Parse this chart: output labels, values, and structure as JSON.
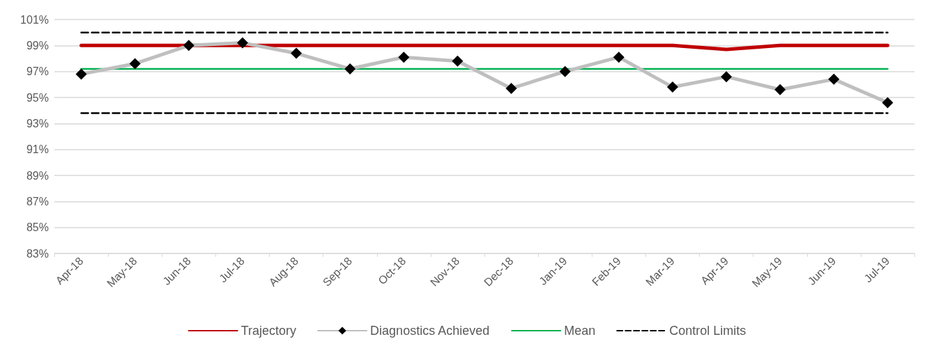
{
  "chart_data": {
    "type": "line",
    "categories": [
      "Apr-18",
      "May-18",
      "Jun-18",
      "Jul-18",
      "Aug-18",
      "Sep-18",
      "Oct-18",
      "Nov-18",
      "Dec-18",
      "Jan-19",
      "Feb-19",
      "Mar-19",
      "Apr-19",
      "May-19",
      "Jun-19",
      "Jul-19"
    ],
    "series": [
      {
        "name": "Trajectory",
        "color": "#c00000",
        "values": [
          99,
          99,
          99,
          99,
          99,
          99,
          99,
          99,
          99,
          99,
          99,
          99,
          98.7,
          99,
          99,
          99
        ],
        "marker": "none",
        "line_style": "solid"
      },
      {
        "name": "Diagnostics Achieved",
        "color": "#bfbfbf",
        "values": [
          96.8,
          97.6,
          99.0,
          99.2,
          98.4,
          97.2,
          98.1,
          97.8,
          95.7,
          97.0,
          98.1,
          95.8,
          96.6,
          95.6,
          96.4,
          94.6
        ],
        "marker": "diamond",
        "line_style": "solid"
      },
      {
        "name": "Mean",
        "color": "#00b050",
        "values": [
          97.2,
          97.2,
          97.2,
          97.2,
          97.2,
          97.2,
          97.2,
          97.2,
          97.2,
          97.2,
          97.2,
          97.2,
          97.2,
          97.2,
          97.2,
          97.2
        ],
        "marker": "none",
        "line_style": "solid"
      },
      {
        "name": "Control Limits",
        "color": "#000000",
        "values": [
          100,
          100,
          100,
          100,
          100,
          100,
          100,
          100,
          100,
          100,
          100,
          100,
          100,
          100,
          100,
          100
        ],
        "marker": "none",
        "line_style": "dashed"
      },
      {
        "color": "#000000",
        "values": [
          93.8,
          93.8,
          93.8,
          93.8,
          93.8,
          93.8,
          93.8,
          93.8,
          93.8,
          93.8,
          93.8,
          93.8,
          93.8,
          93.8,
          93.8,
          93.8
        ],
        "marker": "none",
        "line_style": "dashed"
      }
    ],
    "ylim": [
      83,
      101
    ],
    "yticks": [
      {
        "value": 83,
        "label": "83%"
      },
      {
        "value": 85,
        "label": "85%"
      },
      {
        "value": 87,
        "label": "87%"
      },
      {
        "value": 89,
        "label": "89%"
      },
      {
        "value": 91,
        "label": "91%"
      },
      {
        "value": 93,
        "label": "93%"
      },
      {
        "value": 95,
        "label": "95%"
      },
      {
        "value": 97,
        "label": "97%"
      },
      {
        "value": 99,
        "label": "99%"
      },
      {
        "value": 101,
        "label": "101%"
      }
    ],
    "grid": "y",
    "legend": "bottom"
  }
}
